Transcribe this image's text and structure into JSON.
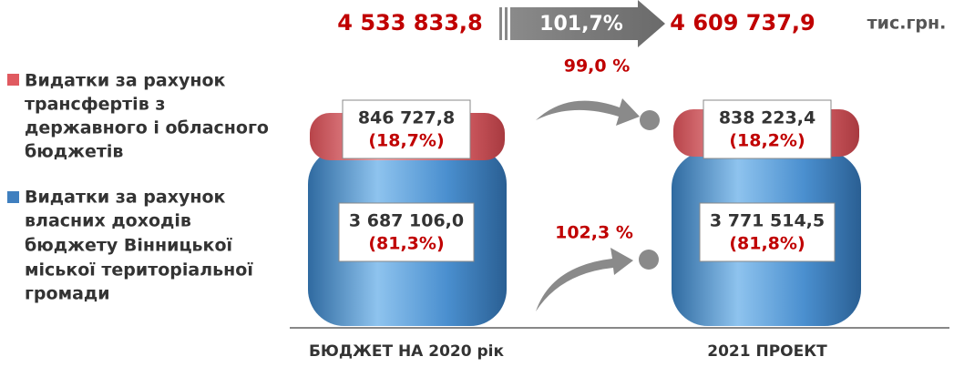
{
  "header": {
    "base_total": "4 533 833,8",
    "growth": "101,7%",
    "project_total": "4 609 737,9",
    "unit": "тис.грн."
  },
  "legend": [
    {
      "lines": [
        "Видатки за рахунок",
        "трансфертів з",
        "державного і обласного",
        "бюджетів"
      ]
    },
    {
      "lines": [
        "Видатки за рахунок",
        "власних доходів",
        "бюджету Вінницької",
        "міської  територіальної",
        "громади"
      ]
    }
  ],
  "columns": [
    {
      "label": "БЮДЖЕТ НА 2020 рік",
      "transfers": {
        "amount": "846 727,8",
        "share": "(18,7%)"
      },
      "own": {
        "amount": "3 687 106,0",
        "share": "(81,3%)"
      }
    },
    {
      "label": "2021 ПРОЕКТ",
      "transfers": {
        "amount": "838 223,4",
        "share": "(18,2%)"
      },
      "own": {
        "amount": "3 771 514,5",
        "share": "(81,8%)"
      }
    }
  ],
  "changes": {
    "transfers": "99,0 %",
    "own": "102,3 %"
  }
}
